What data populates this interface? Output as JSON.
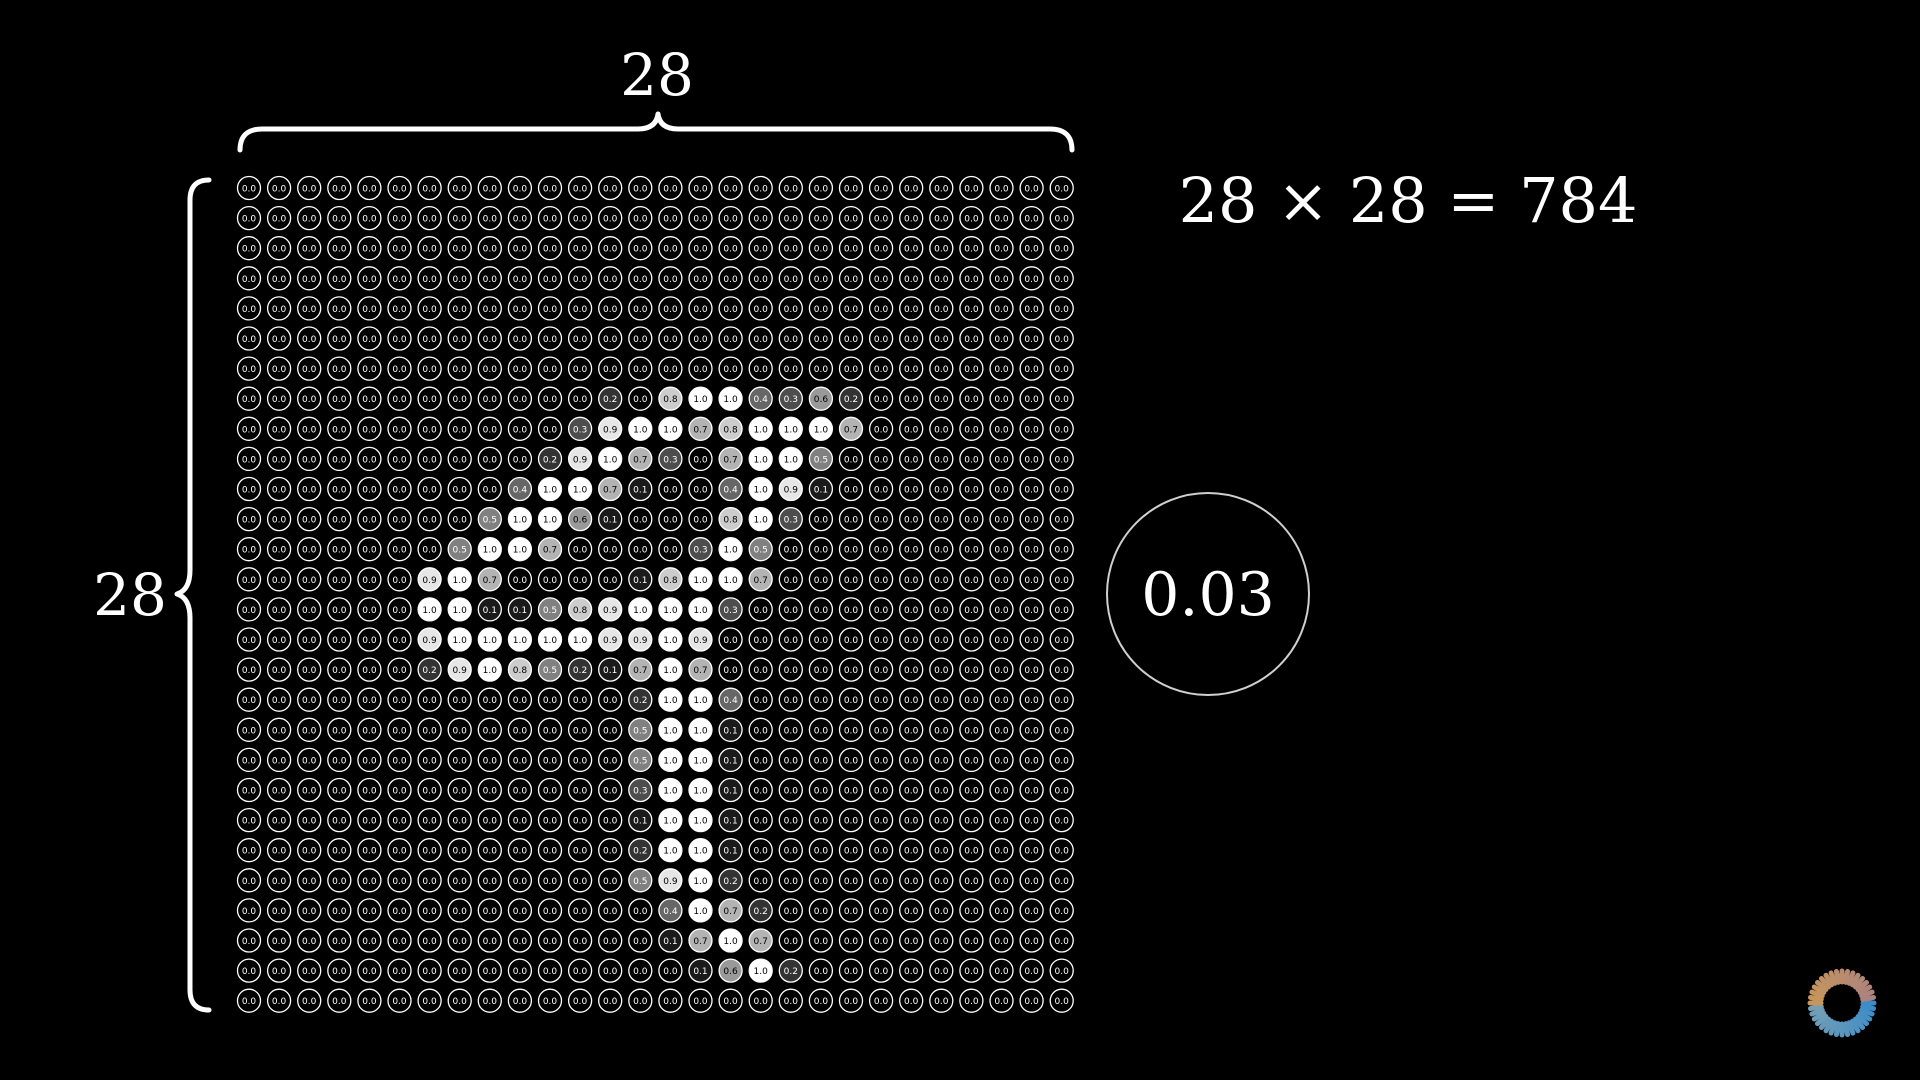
{
  "grid": {
    "width_label": "28",
    "height_label": "28",
    "dimension_formula": "28 × 28 = 784",
    "rows": 28,
    "cols": 28,
    "sparse_values": [
      [
        7,
        12,
        0.2
      ],
      [
        7,
        14,
        0.8
      ],
      [
        7,
        15,
        1.0
      ],
      [
        7,
        16,
        1.0
      ],
      [
        7,
        17,
        0.4
      ],
      [
        7,
        18,
        0.3
      ],
      [
        7,
        19,
        0.6
      ],
      [
        7,
        20,
        0.2
      ],
      [
        8,
        11,
        0.3
      ],
      [
        8,
        12,
        0.9
      ],
      [
        8,
        13,
        1.0
      ],
      [
        8,
        14,
        1.0
      ],
      [
        8,
        15,
        0.7
      ],
      [
        8,
        16,
        0.8
      ],
      [
        8,
        17,
        1.0
      ],
      [
        8,
        18,
        1.0
      ],
      [
        8,
        19,
        1.0
      ],
      [
        8,
        20,
        0.7
      ],
      [
        9,
        10,
        0.2
      ],
      [
        9,
        11,
        0.9
      ],
      [
        9,
        12,
        1.0
      ],
      [
        9,
        13,
        0.7
      ],
      [
        9,
        14,
        0.3
      ],
      [
        9,
        16,
        0.7
      ],
      [
        9,
        17,
        1.0
      ],
      [
        9,
        18,
        1.0
      ],
      [
        9,
        19,
        0.5
      ],
      [
        10,
        9,
        0.4
      ],
      [
        10,
        10,
        1.0
      ],
      [
        10,
        11,
        1.0
      ],
      [
        10,
        12,
        0.7
      ],
      [
        10,
        13,
        0.1
      ],
      [
        10,
        16,
        0.4
      ],
      [
        10,
        17,
        1.0
      ],
      [
        10,
        18,
        0.9
      ],
      [
        10,
        19,
        0.1
      ],
      [
        11,
        8,
        0.5
      ],
      [
        11,
        9,
        1.0
      ],
      [
        11,
        10,
        1.0
      ],
      [
        11,
        11,
        0.6
      ],
      [
        11,
        12,
        0.1
      ],
      [
        11,
        16,
        0.8
      ],
      [
        11,
        17,
        1.0
      ],
      [
        11,
        18,
        0.3
      ],
      [
        12,
        7,
        0.5
      ],
      [
        12,
        8,
        1.0
      ],
      [
        12,
        9,
        1.0
      ],
      [
        12,
        10,
        0.7
      ],
      [
        12,
        15,
        0.3
      ],
      [
        12,
        16,
        1.0
      ],
      [
        12,
        17,
        0.5
      ],
      [
        13,
        6,
        0.9
      ],
      [
        13,
        7,
        1.0
      ],
      [
        13,
        8,
        0.7
      ],
      [
        13,
        13,
        0.1
      ],
      [
        13,
        14,
        0.8
      ],
      [
        13,
        15,
        1.0
      ],
      [
        13,
        16,
        1.0
      ],
      [
        13,
        17,
        0.7
      ],
      [
        14,
        6,
        1.0
      ],
      [
        14,
        7,
        1.0
      ],
      [
        14,
        8,
        0.1
      ],
      [
        14,
        9,
        0.1
      ],
      [
        14,
        10,
        0.5
      ],
      [
        14,
        11,
        0.8
      ],
      [
        14,
        12,
        0.9
      ],
      [
        14,
        13,
        1.0
      ],
      [
        14,
        14,
        1.0
      ],
      [
        14,
        15,
        1.0
      ],
      [
        14,
        16,
        0.3
      ],
      [
        15,
        6,
        0.9
      ],
      [
        15,
        7,
        1.0
      ],
      [
        15,
        8,
        1.0
      ],
      [
        15,
        9,
        1.0
      ],
      [
        15,
        10,
        1.0
      ],
      [
        15,
        11,
        1.0
      ],
      [
        15,
        12,
        0.9
      ],
      [
        15,
        13,
        0.9
      ],
      [
        15,
        14,
        1.0
      ],
      [
        15,
        15,
        0.9
      ],
      [
        16,
        6,
        0.2
      ],
      [
        16,
        7,
        0.9
      ],
      [
        16,
        8,
        1.0
      ],
      [
        16,
        9,
        0.8
      ],
      [
        16,
        10,
        0.5
      ],
      [
        16,
        11,
        0.2
      ],
      [
        16,
        12,
        0.1
      ],
      [
        16,
        13,
        0.7
      ],
      [
        16,
        14,
        1.0
      ],
      [
        16,
        15,
        0.7
      ],
      [
        17,
        13,
        0.2
      ],
      [
        17,
        14,
        1.0
      ],
      [
        17,
        15,
        1.0
      ],
      [
        17,
        16,
        0.4
      ],
      [
        18,
        13,
        0.5
      ],
      [
        18,
        14,
        1.0
      ],
      [
        18,
        15,
        1.0
      ],
      [
        18,
        16,
        0.1
      ],
      [
        19,
        13,
        0.5
      ],
      [
        19,
        14,
        1.0
      ],
      [
        19,
        15,
        1.0
      ],
      [
        19,
        16,
        0.1
      ],
      [
        20,
        13,
        0.3
      ],
      [
        20,
        14,
        1.0
      ],
      [
        20,
        15,
        1.0
      ],
      [
        20,
        16,
        0.1
      ],
      [
        21,
        13,
        0.1
      ],
      [
        21,
        14,
        1.0
      ],
      [
        21,
        15,
        1.0
      ],
      [
        21,
        16,
        0.1
      ],
      [
        22,
        13,
        0.2
      ],
      [
        22,
        14,
        1.0
      ],
      [
        22,
        15,
        1.0
      ],
      [
        22,
        16,
        0.1
      ],
      [
        23,
        13,
        0.5
      ],
      [
        23,
        14,
        0.9
      ],
      [
        23,
        15,
        1.0
      ],
      [
        23,
        16,
        0.2
      ],
      [
        24,
        14,
        0.4
      ],
      [
        24,
        15,
        1.0
      ],
      [
        24,
        16,
        0.7
      ],
      [
        24,
        17,
        0.2
      ],
      [
        25,
        14,
        0.1
      ],
      [
        25,
        15,
        0.7
      ],
      [
        25,
        16,
        1.0
      ],
      [
        25,
        17,
        0.7
      ],
      [
        26,
        15,
        0.1
      ],
      [
        26,
        16,
        0.6
      ],
      [
        26,
        17,
        1.0
      ],
      [
        26,
        18,
        0.2
      ]
    ]
  },
  "highlight_neuron": {
    "value": "0.03"
  },
  "colors": {
    "background": "#000000",
    "foreground": "#ffffff",
    "ring": "#cfcfcf"
  },
  "icons": {
    "corner": "loading-spinner-icon"
  }
}
